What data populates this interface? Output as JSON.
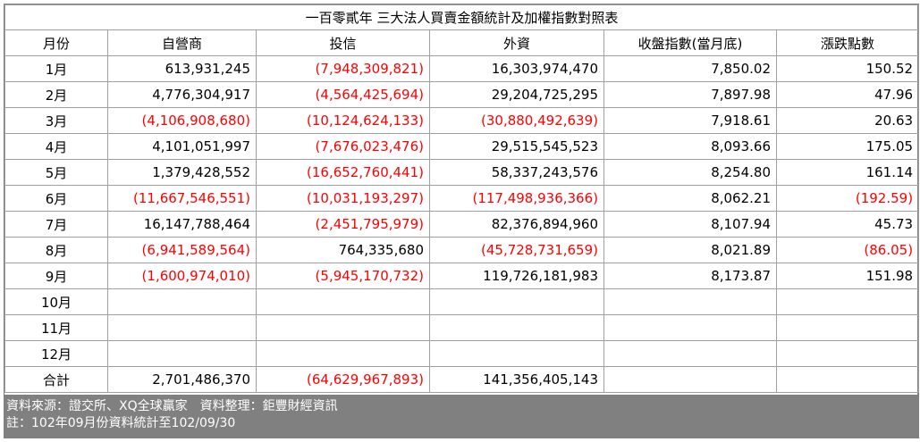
{
  "title": "一百零貳年  三大法人買賣金額統計及加權指數對照表",
  "headers": [
    "月份",
    "自營商",
    "投信",
    "外資",
    "收盤指數(當月底)",
    "漲跌點數"
  ],
  "rows": [
    {
      "month": "1月",
      "dealer": "613,931,245",
      "trust": "(7,948,309,821)",
      "foreign": "16,303,974,470",
      "index": "7,850.02",
      "change": "150.52"
    },
    {
      "month": "2月",
      "dealer": "4,776,304,917",
      "trust": "(4,564,425,694)",
      "foreign": "29,204,725,295",
      "index": "7,897.98",
      "change": "47.96"
    },
    {
      "month": "3月",
      "dealer": "(4,106,908,680)",
      "trust": "(10,124,624,133)",
      "foreign": "(30,880,492,639)",
      "index": "7,918.61",
      "change": "20.63"
    },
    {
      "month": "4月",
      "dealer": "4,101,051,997",
      "trust": "(7,676,023,476)",
      "foreign": "29,515,545,523",
      "index": "8,093.66",
      "change": "175.05"
    },
    {
      "month": "5月",
      "dealer": "1,379,428,552",
      "trust": "(16,652,760,441)",
      "foreign": "58,337,243,576",
      "index": "8,254.80",
      "change": "161.14"
    },
    {
      "month": "6月",
      "dealer": "(11,667,546,551)",
      "trust": "(10,031,193,297)",
      "foreign": "(117,498,936,366)",
      "index": "8,062.21",
      "change": "(192.59)"
    },
    {
      "month": "7月",
      "dealer": "16,147,788,464",
      "trust": "(2,451,795,979)",
      "foreign": "82,376,894,960",
      "index": "8,107.94",
      "change": "45.73"
    },
    {
      "month": "8月",
      "dealer": "(6,941,589,564)",
      "trust": "764,335,680",
      "foreign": "(45,728,731,659)",
      "index": "8,021.89",
      "change": "(86.05)"
    },
    {
      "month": "9月",
      "dealer": "(1,600,974,010)",
      "trust": "(5,945,170,732)",
      "foreign": "119,726,181,983",
      "index": "8,173.87",
      "change": "151.98"
    },
    {
      "month": "10月",
      "dealer": "",
      "trust": "",
      "foreign": "",
      "index": "",
      "change": ""
    },
    {
      "month": "11月",
      "dealer": "",
      "trust": "",
      "foreign": "",
      "index": "",
      "change": ""
    },
    {
      "month": "12月",
      "dealer": "",
      "trust": "",
      "foreign": "",
      "index": "",
      "change": ""
    }
  ],
  "total": {
    "month": "合計",
    "dealer": "2,701,486,370",
    "trust": "(64,629,967,893)",
    "foreign": "141,356,405,143",
    "index": "",
    "change": ""
  },
  "footer": {
    "source": "資料來源：證交所、XQ全球贏家　資料整理：鉅豐財經資訊",
    "note": "註：102年09月份資料統計至102/09/30"
  },
  "colors": {
    "negative": "#ff0000",
    "footer_bg": "#808080",
    "border": "#a0a0a0"
  }
}
